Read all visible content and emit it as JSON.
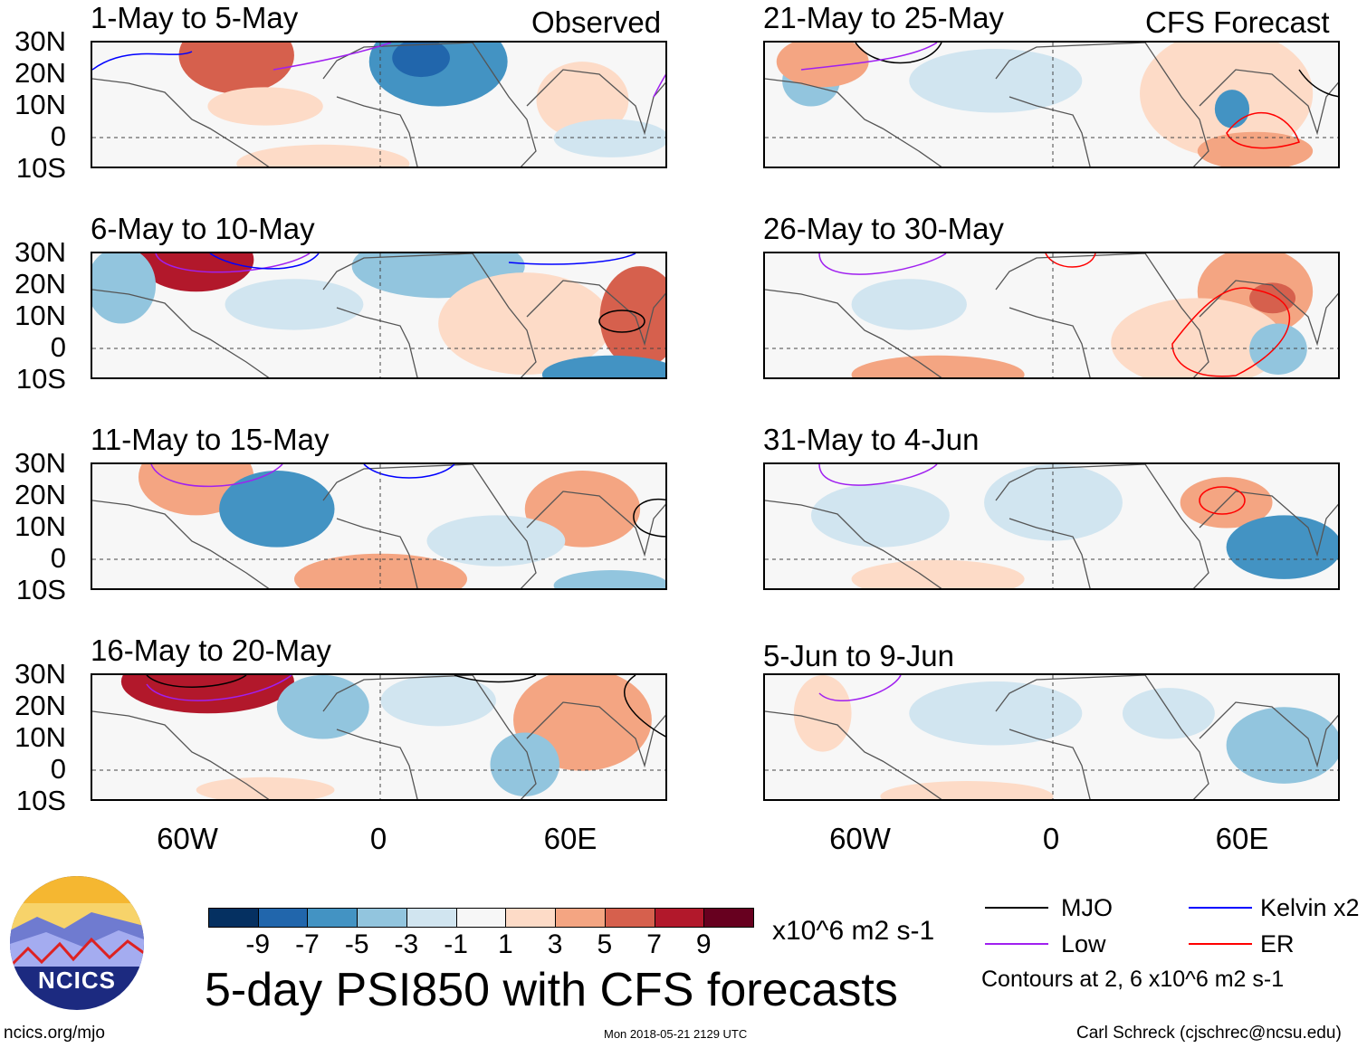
{
  "title": "5-day PSI850 with CFS forecasts",
  "units": "x10^6 m2 s-1",
  "timestamp": "Mon 2018-05-21 2129 UTC",
  "site": "ncics.org/mjo",
  "author": "Carl Schreck (cjschrec@ncsu.edu)",
  "logo_text": "NCICS",
  "column_labels": {
    "observed": "Observed",
    "forecast": "CFS Forecast"
  },
  "legend": {
    "items": [
      {
        "label": "MJO",
        "color": "#000000"
      },
      {
        "label": "Kelvin x2",
        "color": "#0000ff"
      },
      {
        "label": "Low",
        "color": "#a020f0"
      },
      {
        "label": "ER",
        "color": "#ff0000"
      }
    ],
    "note": "Contours at 2, 6 x10^6 m2 s-1"
  },
  "chart_data": {
    "type": "heatmap",
    "title": "5-day PSI850 with CFS forecasts",
    "panels": [
      {
        "label": "1-May to 5-May",
        "kind": "Observed"
      },
      {
        "label": "6-May to 10-May",
        "kind": "Observed"
      },
      {
        "label": "11-May to 15-May",
        "kind": "Observed"
      },
      {
        "label": "16-May to 20-May",
        "kind": "Observed"
      },
      {
        "label": "21-May to 25-May",
        "kind": "CFS Forecast"
      },
      {
        "label": "26-May to 30-May",
        "kind": "CFS Forecast"
      },
      {
        "label": "31-May to 4-Jun",
        "kind": "CFS Forecast"
      },
      {
        "label": "5-Jun to 9-Jun",
        "kind": "CFS Forecast"
      }
    ],
    "lat_ticks": [
      "30N",
      "20N",
      "10N",
      "0",
      "10S"
    ],
    "lon_ticks": [
      "60W",
      "0",
      "60E"
    ],
    "ylim": [
      -10,
      30
    ],
    "colorbar": {
      "ticks": [
        "-9",
        "-7",
        "-5",
        "-3",
        "-1",
        "1",
        "3",
        "5",
        "7",
        "9"
      ],
      "colors": [
        "#053061",
        "#2166ac",
        "#4393c3",
        "#92c5de",
        "#d1e5f0",
        "#f7f7f7",
        "#fddbc7",
        "#f4a582",
        "#d6604d",
        "#b2182b",
        "#67001f"
      ]
    }
  }
}
